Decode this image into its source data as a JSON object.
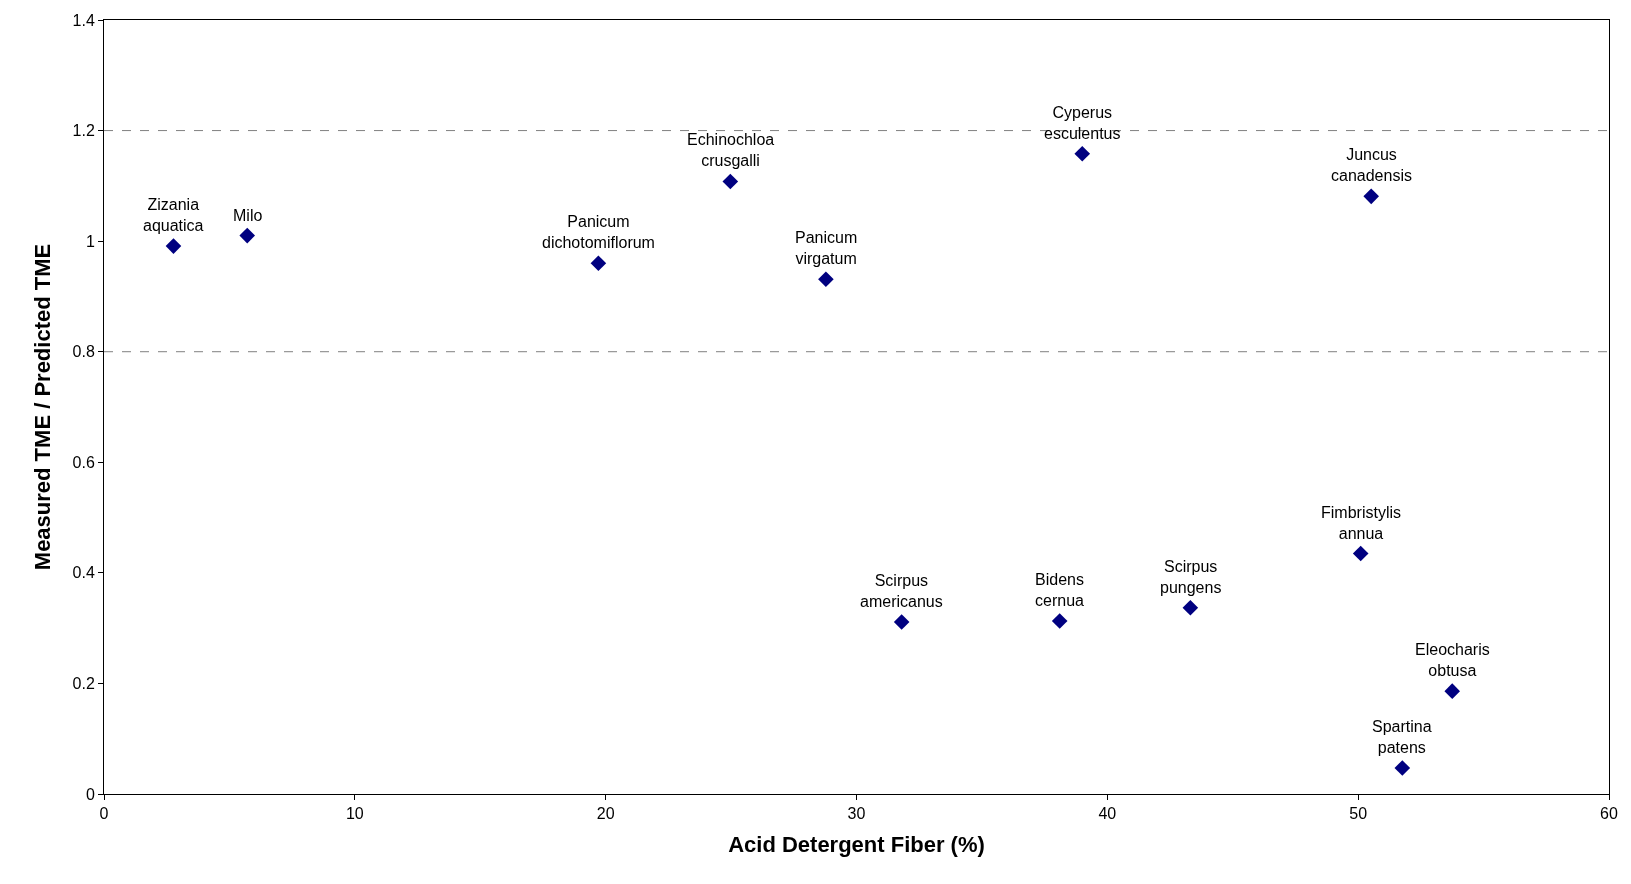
{
  "chart_data": {
    "type": "scatter",
    "xlabel": "Acid Detergent Fiber (%)",
    "ylabel": "Measured TME / Predicted TME",
    "x": [
      2.77,
      5.71,
      19.71,
      24.97,
      28.78,
      39.0,
      50.52,
      31.8,
      38.1,
      43.31,
      50.1,
      53.75,
      51.76
    ],
    "series": [
      {
        "color": "#000080",
        "values": [
          0.991,
          1.01,
          0.96,
          1.108,
          0.931,
          1.158,
          1.081,
          0.311,
          0.313,
          0.337,
          0.435,
          0.186,
          0.047
        ]
      }
    ],
    "marker": "diamond",
    "grid": false,
    "xlim": [
      0,
      60
    ],
    "xticks": [
      0,
      10,
      20,
      30,
      40,
      50,
      60
    ],
    "ylim": [
      0,
      1.4
    ],
    "yticks": [
      0,
      0.2,
      0.4,
      0.6,
      0.8,
      1,
      1.2,
      1.4
    ],
    "ref_lines": [
      {
        "axis": "y",
        "value": 1.2,
        "color": "#808080",
        "line_style": "dashed"
      },
      {
        "axis": "y",
        "value": 0.8,
        "color": "#808080",
        "line_style": "dashed"
      }
    ],
    "annotations": [
      {
        "text": "Zizania aquatica",
        "x": 2.77,
        "y": 0.991
      },
      {
        "text": "Milo",
        "x": 5.71,
        "y": 1.01
      },
      {
        "text": "Panicum dichotomiflorum",
        "x": 19.71,
        "y": 0.96
      },
      {
        "text": "Echinochloa crusgalli",
        "x": 24.97,
        "y": 1.108
      },
      {
        "text": "Panicum virgatum",
        "x": 28.78,
        "y": 0.931
      },
      {
        "text": "Cyperus esculentus",
        "x": 39.0,
        "y": 1.158
      },
      {
        "text": "Juncus canadensis",
        "x": 50.52,
        "y": 1.081
      },
      {
        "text": "Scirpus americanus",
        "x": 31.8,
        "y": 0.311
      },
      {
        "text": "Bidens cernua",
        "x": 38.1,
        "y": 0.313
      },
      {
        "text": "Scirpus pungens",
        "x": 43.31,
        "y": 0.337
      },
      {
        "text": "Fimbristylis annua",
        "x": 50.1,
        "y": 0.435
      },
      {
        "text": "Eleocharis obtusa",
        "x": 53.75,
        "y": 0.186
      },
      {
        "text": "Spartina patens",
        "x": 51.76,
        "y": 0.047
      }
    ]
  }
}
